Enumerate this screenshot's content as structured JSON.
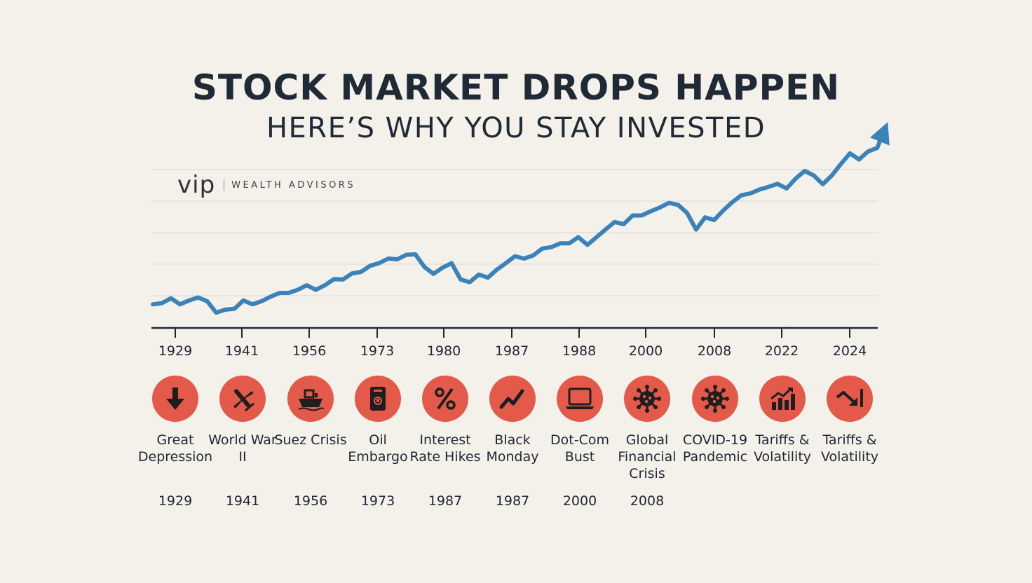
{
  "header": {
    "title": "STOCK MARKET DROPS HAPPEN",
    "subtitle": "HERE’S WHY YOU STAY INVESTED"
  },
  "logo": {
    "main": "vip",
    "sub": "WEALTH ADVISORS"
  },
  "colors": {
    "background": "#f4f0ea",
    "line": "#3a82b8",
    "icon_bg": "#e35a4a",
    "text": "#1e2733"
  },
  "chart_data": {
    "type": "line",
    "title": "STOCK MARKET DROPS HAPPEN",
    "subtitle": "HERE’S WHY YOU STAY INVESTED",
    "xlabel": "",
    "ylabel": "",
    "tick_labels": [
      "1929",
      "1941",
      "1956",
      "1973",
      "1980",
      "1987",
      "1988",
      "2000",
      "2008",
      "2022",
      "2024"
    ],
    "ylim": [
      0,
      5
    ],
    "grid": true,
    "y_axis_labels_shown": false,
    "series": [
      {
        "values": [
          0.62,
          0.65,
          0.78,
          0.62,
          0.72,
          0.8,
          0.7,
          0.4,
          0.48,
          0.5,
          0.72,
          0.62,
          0.7,
          0.82,
          0.92,
          0.92,
          1.0,
          1.12,
          1.0,
          1.12,
          1.28,
          1.27,
          1.43,
          1.47,
          1.63,
          1.7,
          1.82,
          1.8,
          1.92,
          1.93,
          1.6,
          1.42,
          1.58,
          1.7,
          1.27,
          1.2,
          1.4,
          1.32,
          1.53,
          1.7,
          1.88,
          1.82,
          1.9,
          2.08,
          2.12,
          2.22,
          2.22,
          2.38,
          2.18,
          2.38,
          2.58,
          2.78,
          2.72,
          2.95,
          2.95,
          3.06,
          3.16,
          3.28,
          3.23,
          3.02,
          2.58,
          2.9,
          2.83,
          3.08,
          3.3,
          3.48,
          3.53,
          3.63,
          3.7,
          3.78,
          3.66,
          3.92,
          4.12,
          4.0,
          3.77,
          4.0,
          4.3,
          4.58,
          4.42,
          4.63,
          4.72,
          5.3
        ]
      }
    ],
    "annotations": [
      "arrowhead at end of line"
    ]
  },
  "events": [
    {
      "label": "Great Depression",
      "year": "1929",
      "icon": "arrow-down-icon"
    },
    {
      "label": "World War II",
      "year": "1941",
      "icon": "airplane-icon"
    },
    {
      "label": "Suez Crisis",
      "year": "1956",
      "icon": "ship-icon"
    },
    {
      "label": "Oil Embargo",
      "year": "1973",
      "icon": "oil-can-icon"
    },
    {
      "label": "Interest Rate Hikes",
      "year": "1987",
      "icon": "percent-icon"
    },
    {
      "label": "Black Monday",
      "year": "1987",
      "icon": "zigzag-chart-icon"
    },
    {
      "label": "Dot-Com Bust",
      "year": "2000",
      "icon": "laptop-icon"
    },
    {
      "label": "Global Financial Crisis",
      "year": "2008",
      "icon": "virus-icon"
    },
    {
      "label": "COVID-19 Pandemic",
      "year": "",
      "icon": "virus-icon"
    },
    {
      "label": "Tariffs & Volatility",
      "year": "",
      "icon": "bar-chart-up-icon"
    },
    {
      "label": "Tariffs & Volatility",
      "year": "",
      "icon": "trend-down-arrow-icon"
    }
  ]
}
